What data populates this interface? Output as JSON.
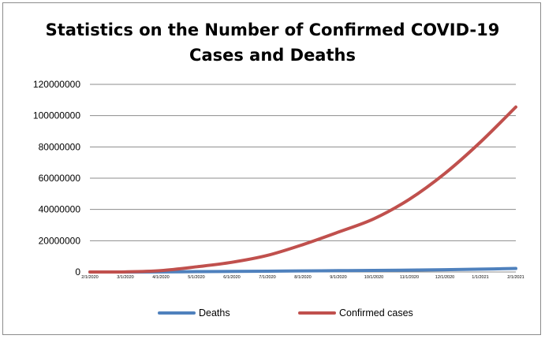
{
  "chart_data": {
    "type": "line",
    "title_lines": [
      "Statistics on the Number of Confirmed COVID-19",
      "Cases and Deaths"
    ],
    "xlabel": "",
    "ylabel": "",
    "ylim": [
      0,
      120000000
    ],
    "yticks": [
      0,
      20000000,
      40000000,
      60000000,
      80000000,
      100000000,
      120000000
    ],
    "ytick_labels": [
      "0",
      "20000000",
      "40000000",
      "60000000",
      "80000000",
      "100000000",
      "120000000"
    ],
    "x_tick_labels": [
      "2/1/2020",
      "3/1/2020",
      "4/1/2020",
      "5/1/2020",
      "6/1/2020",
      "7/1/2020",
      "8/1/2020",
      "9/1/2020",
      "10/1/2020",
      "11/1/2020",
      "12/1/2020",
      "1/1/2021",
      "2/1/2021"
    ],
    "grid": true,
    "legend_position": "bottom",
    "series": [
      {
        "name": "Deaths",
        "color": "#4f81bd",
        "values": [
          0,
          3000,
          40000,
          230000,
          370000,
          510000,
          680000,
          850000,
          1010000,
          1210000,
          1470000,
          1820000,
          2240000
        ]
      },
      {
        "name": "Confirmed cases",
        "color": "#c0504d",
        "values": [
          10000,
          90000,
          900000,
          3300000,
          6200000,
          10600000,
          17500000,
          25500000,
          34000000,
          46500000,
          63000000,
          83000000,
          105500000
        ]
      }
    ]
  }
}
